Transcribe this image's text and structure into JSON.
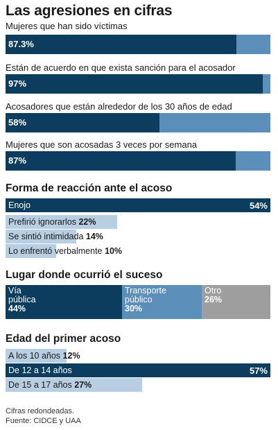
{
  "title": "Las agresiones en cifras",
  "stats": [
    {
      "label": "Mujeres que han sido víctimas",
      "value_label": "87.3%",
      "value": 87.3
    },
    {
      "label": "Están de acuerdo en que exista sanción para el acosador",
      "value_label": "97%",
      "value": 97
    },
    {
      "label": "Acosadores que están alrededor de los 30 años de edad",
      "value_label": "58%",
      "value": 58
    },
    {
      "label": "Mujeres que son acosadas 3 veces por semana",
      "value_label": "87%",
      "value": 87
    }
  ],
  "reaction": {
    "title": "Forma de reacción ante el acoso",
    "items": [
      {
        "label": "Enojo",
        "value_label": "54%",
        "value": 54
      },
      {
        "label": "Prefirió ignorarlos",
        "value_label": "22%",
        "value": 22
      },
      {
        "label": "Se sintió intimidada",
        "value_label": "14%",
        "value": 14
      },
      {
        "label": "Lo enfrentó verbalmente",
        "value_label": "10%",
        "value": 10
      }
    ]
  },
  "place": {
    "title": "Lugar donde ocurrió el suceso",
    "items": [
      {
        "label_lines": [
          "Vía",
          "pública"
        ],
        "value_label": "44%",
        "value": 44,
        "color": "#0c3d5e"
      },
      {
        "label_lines": [
          "Transporte",
          "público"
        ],
        "value_label": "30%",
        "value": 30,
        "color": "#5b8fb9"
      },
      {
        "label_lines": [
          "Otro"
        ],
        "value_label": "26%",
        "value": 26,
        "color": "#9e9e9e"
      }
    ]
  },
  "age": {
    "title": "Edad del primer acoso",
    "items": [
      {
        "label": "A los 10 años",
        "value_label": "12%",
        "value": 12
      },
      {
        "label": "De 12 a 14 años",
        "value_label": "57%",
        "value": 57
      },
      {
        "label": "De 15 a 17 años",
        "value_label": "27%",
        "value": 27
      }
    ]
  },
  "footer": {
    "note": "Cifras redondeadas.",
    "source": "Fuente: CIDCE y UAA"
  },
  "colors": {
    "dark": "#0c3d5e",
    "mid": "#5b8fb9",
    "light": "#b8cfe3",
    "gray": "#9e9e9e"
  },
  "chart_data": [
    {
      "type": "bar",
      "categories": [
        "Mujeres que han sido víctimas",
        "Están de acuerdo en que exista sanción para el acosador",
        "Acosadores que están alrededor de los 30 años de edad",
        "Mujeres que son acosadas 3 veces por semana"
      ],
      "values": [
        87.3,
        97,
        58,
        87
      ],
      "ylim": [
        0,
        100
      ]
    },
    {
      "type": "bar",
      "title": "Forma de reacción ante el acoso",
      "categories": [
        "Enojo",
        "Prefirió ignorarlos",
        "Se sintió intimidada",
        "Lo enfrentó verbalmente"
      ],
      "values": [
        54,
        22,
        14,
        10
      ]
    },
    {
      "type": "bar",
      "title": "Lugar donde ocurrió el suceso",
      "categories": [
        "Vía pública",
        "Transporte público",
        "Otro"
      ],
      "values": [
        44,
        30,
        26
      ]
    },
    {
      "type": "bar",
      "title": "Edad del primer acoso",
      "categories": [
        "A los 10 años",
        "De 12 a 14 años",
        "De 15 a 17 años"
      ],
      "values": [
        12,
        57,
        27
      ]
    }
  ]
}
